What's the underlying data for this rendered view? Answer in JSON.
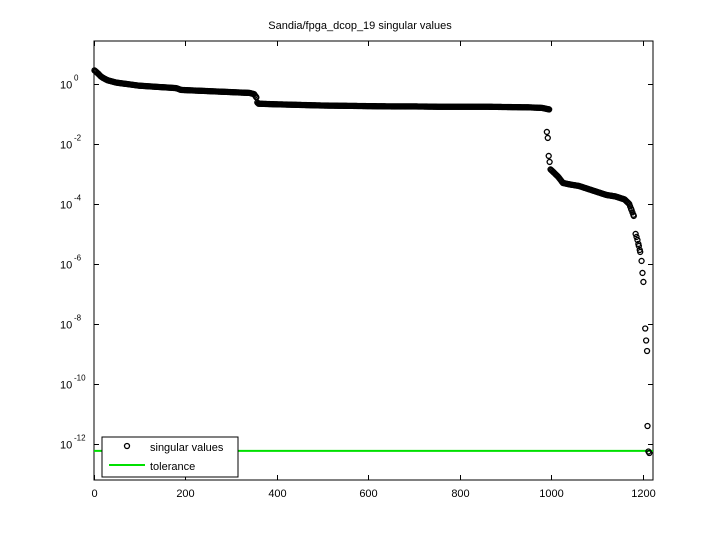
{
  "chart_data": {
    "type": "scatter",
    "title": "Sandia/fpga_dcop_19 singular values",
    "xlabel": "",
    "ylabel": "",
    "xscale": "linear",
    "yscale": "log",
    "xlim": [
      0,
      1222
    ],
    "ylim_exponent": [
      -13.2,
      1.43
    ],
    "x_ticks": [
      0,
      200,
      400,
      600,
      800,
      1000,
      1200
    ],
    "x_tick_labels": [
      "0",
      "200",
      "400",
      "600",
      "800",
      "1000",
      "1200"
    ],
    "y_ticks_exponent": [
      0,
      -2,
      -4,
      -6,
      -8,
      -10,
      -12
    ],
    "y_tick_labels": [
      {
        "base": "10",
        "exp": "0"
      },
      {
        "base": "10",
        "exp": "-2"
      },
      {
        "base": "10",
        "exp": "-4"
      },
      {
        "base": "10",
        "exp": "-6"
      },
      {
        "base": "10",
        "exp": "-8"
      },
      {
        "base": "10",
        "exp": "-10"
      },
      {
        "base": "10",
        "exp": "-12"
      }
    ],
    "grid": false,
    "legend": {
      "position": "lower left",
      "entries": [
        {
          "label": "singular values",
          "marker": "o",
          "color": "#000000"
        },
        {
          "label": "tolerance",
          "marker": "line",
          "color": "#00e000"
        }
      ]
    },
    "series": [
      {
        "name": "singular values",
        "marker": "circle-open",
        "color": "#000000",
        "points_log10": [
          [
            1,
            0.45
          ],
          [
            5,
            0.4
          ],
          [
            10,
            0.33
          ],
          [
            15,
            0.25
          ],
          [
            20,
            0.2
          ],
          [
            25,
            0.16
          ],
          [
            30,
            0.12
          ],
          [
            40,
            0.08
          ],
          [
            50,
            0.04
          ],
          [
            60,
            0.02
          ],
          [
            70,
            0.0
          ],
          [
            80,
            -0.02
          ],
          [
            90,
            -0.04
          ],
          [
            100,
            -0.06
          ],
          [
            120,
            -0.08
          ],
          [
            140,
            -0.1
          ],
          [
            160,
            -0.12
          ],
          [
            180,
            -0.14
          ],
          [
            190,
            -0.2
          ],
          [
            220,
            -0.22
          ],
          [
            250,
            -0.24
          ],
          [
            280,
            -0.26
          ],
          [
            310,
            -0.28
          ],
          [
            340,
            -0.3
          ],
          [
            350,
            -0.34
          ],
          [
            355,
            -0.45
          ],
          [
            357,
            -0.62
          ],
          [
            360,
            -0.66
          ],
          [
            400,
            -0.68
          ],
          [
            450,
            -0.7
          ],
          [
            500,
            -0.72
          ],
          [
            550,
            -0.73
          ],
          [
            600,
            -0.74
          ],
          [
            650,
            -0.75
          ],
          [
            700,
            -0.75
          ],
          [
            750,
            -0.76
          ],
          [
            800,
            -0.76
          ],
          [
            850,
            -0.76
          ],
          [
            900,
            -0.77
          ],
          [
            950,
            -0.78
          ],
          [
            980,
            -0.8
          ],
          [
            995,
            -0.85
          ],
          [
            990,
            -1.6
          ],
          [
            992,
            -1.8
          ],
          [
            994,
            -2.4
          ],
          [
            996,
            -2.6
          ],
          [
            998,
            -2.85
          ],
          [
            1005,
            -2.95
          ],
          [
            1015,
            -3.1
          ],
          [
            1025,
            -3.3
          ],
          [
            1040,
            -3.35
          ],
          [
            1060,
            -3.4
          ],
          [
            1080,
            -3.5
          ],
          [
            1100,
            -3.6
          ],
          [
            1120,
            -3.7
          ],
          [
            1140,
            -3.75
          ],
          [
            1160,
            -3.85
          ],
          [
            1170,
            -4.0
          ],
          [
            1175,
            -4.2
          ],
          [
            1180,
            -4.4
          ],
          [
            1184,
            -5.0
          ],
          [
            1188,
            -5.2
          ],
          [
            1191,
            -5.4
          ],
          [
            1194,
            -5.6
          ],
          [
            1197,
            -5.9
          ],
          [
            1199,
            -6.3
          ],
          [
            1201,
            -6.6
          ],
          [
            1205,
            -8.15
          ],
          [
            1207,
            -8.55
          ],
          [
            1209,
            -8.9
          ],
          [
            1210,
            -11.4
          ],
          [
            1212,
            -12.25
          ],
          [
            1214,
            -12.3
          ]
        ]
      },
      {
        "name": "tolerance",
        "type": "line",
        "color": "#00e000",
        "value_log10": -12.23
      }
    ]
  }
}
